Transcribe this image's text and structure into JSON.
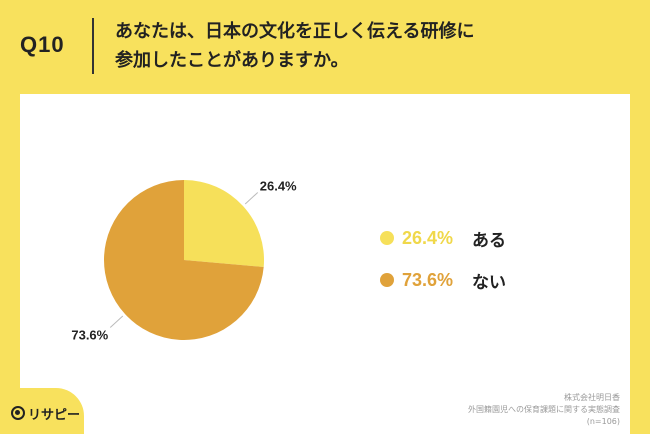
{
  "header": {
    "question_number": "Q10",
    "title_line1": "あなたは、日本の文化を正しく伝える研修に",
    "title_line2": "参加したことがありますか。"
  },
  "chart_data": {
    "type": "pie",
    "categories": [
      "ある",
      "ない"
    ],
    "values": [
      26.4,
      73.6
    ],
    "value_labels": [
      "26.4%",
      "73.6%"
    ],
    "colors": [
      "#f6e05a",
      "#e0a23a"
    ],
    "title": "",
    "legend_position": "right"
  },
  "legend": {
    "items": [
      {
        "value": "26.4%",
        "label": "ある",
        "color": "#f6e05a"
      },
      {
        "value": "73.6%",
        "label": "ない",
        "color": "#e0a23a"
      }
    ]
  },
  "source": {
    "line1": "株式会社明日香",
    "line2": "外国籍園児への保育課題に関する実態調査",
    "line3": "(n=106)"
  },
  "logo": {
    "text": "リサピー",
    "icon": "risapi-logo-icon"
  }
}
